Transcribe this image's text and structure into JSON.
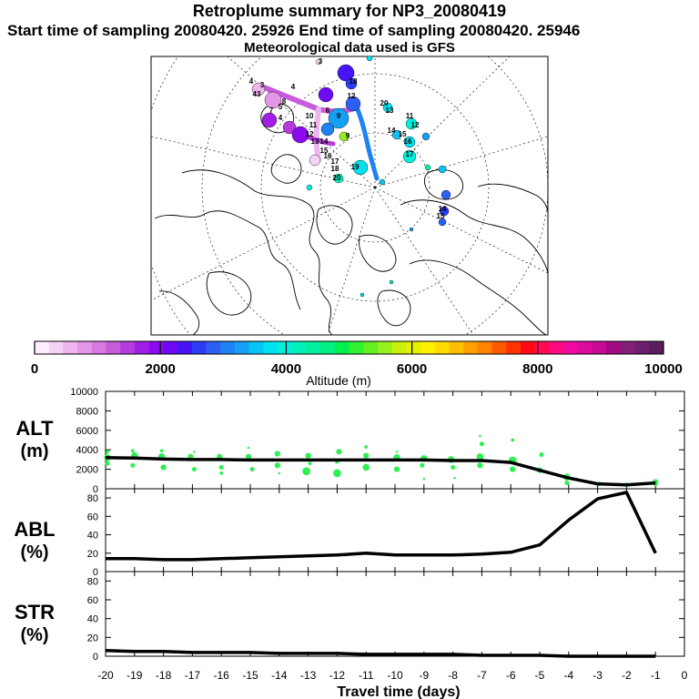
{
  "header": {
    "title": "Retroplume summary for NP3_20080419",
    "sampling_line": "Start time of sampling 20080420. 25926     End time of sampling 20080420. 25946",
    "met_line": "Meteorological data used is GFS"
  },
  "colorbar": {
    "label": "Altitude (m)",
    "ticks": [
      "0",
      "2000",
      "4000",
      "6000",
      "8000",
      "10000"
    ],
    "range": [
      0,
      10000
    ],
    "colors": [
      "#ffeeff",
      "#f6d2f6",
      "#eeb4ee",
      "#e696e6",
      "#d878e0",
      "#c85adc",
      "#b43cdc",
      "#a01ee6",
      "#8c0af0",
      "#6e0af5",
      "#4614f5",
      "#2d3cf5",
      "#2d5ff5",
      "#1e82f5",
      "#14a0f5",
      "#0ac3f5",
      "#00e1f0",
      "#00f0dc",
      "#00f0be",
      "#00f0a0",
      "#00f082",
      "#00f050",
      "#32f032",
      "#64f01e",
      "#96f01e",
      "#c8f00a",
      "#e6f000",
      "#fff000",
      "#ffdc00",
      "#ffbe00",
      "#ffa000",
      "#ff8200",
      "#ff5a00",
      "#ff3200",
      "#ff0a14",
      "#ff0a50",
      "#ff0a82",
      "#f00aa0",
      "#dc0aa0",
      "#c80a96",
      "#a00a82",
      "#821e78",
      "#6e1e6e",
      "#5a1e5a"
    ]
  },
  "map": {
    "labels": [
      {
        "t": "4",
        "x": 276,
        "y": 92
      },
      {
        "t": "3",
        "x": 288,
        "y": 96
      },
      {
        "t": "43",
        "x": 282,
        "y": 106
      },
      {
        "t": "4",
        "x": 322,
        "y": 98
      },
      {
        "t": "8",
        "x": 312,
        "y": 114
      },
      {
        "t": "5",
        "x": 308,
        "y": 120
      },
      {
        "t": "7",
        "x": 298,
        "y": 124
      },
      {
        "t": "4",
        "x": 308,
        "y": 132
      },
      {
        "t": "10",
        "x": 340,
        "y": 130
      },
      {
        "t": "9",
        "x": 372,
        "y": 130
      },
      {
        "t": "11",
        "x": 344,
        "y": 140
      },
      {
        "t": "12",
        "x": 340,
        "y": 150
      },
      {
        "t": "13",
        "x": 346,
        "y": 158
      },
      {
        "t": "14",
        "x": 356,
        "y": 158
      },
      {
        "t": "15",
        "x": 356,
        "y": 168
      },
      {
        "t": "16",
        "x": 360,
        "y": 174
      },
      {
        "t": "17",
        "x": 368,
        "y": 180
      },
      {
        "t": "18",
        "x": 368,
        "y": 188
      },
      {
        "t": "19",
        "x": 390,
        "y": 186
      },
      {
        "t": "20",
        "x": 370,
        "y": 198
      },
      {
        "t": "18",
        "x": 388,
        "y": 92
      },
      {
        "t": "12",
        "x": 386,
        "y": 108
      },
      {
        "t": "3",
        "x": 352,
        "y": 70
      },
      {
        "t": "20",
        "x": 422,
        "y": 116
      },
      {
        "t": "13",
        "x": 428,
        "y": 124
      },
      {
        "t": "11",
        "x": 450,
        "y": 130
      },
      {
        "t": "12",
        "x": 456,
        "y": 140
      },
      {
        "t": "14",
        "x": 430,
        "y": 146
      },
      {
        "t": "15",
        "x": 442,
        "y": 150
      },
      {
        "t": "16",
        "x": 448,
        "y": 158
      },
      {
        "t": "17",
        "x": 450,
        "y": 172
      },
      {
        "t": "14",
        "x": 486,
        "y": 232
      },
      {
        "t": "15",
        "x": 484,
        "y": 240
      },
      {
        "t": "9",
        "x": 382,
        "y": 152
      },
      {
        "t": "6",
        "x": 360,
        "y": 124
      }
    ]
  },
  "chart_data": [
    {
      "type": "scatter",
      "title": "ALT (m)",
      "panel_label": "ALT",
      "panel_unit": "(m)",
      "ylim": [
        0,
        10000
      ],
      "yticks": [
        "0",
        "2000",
        "4000",
        "6000",
        "8000",
        "10000"
      ],
      "x": [
        -20,
        -19,
        -18,
        -17,
        -16,
        -15,
        -14,
        -13,
        -12,
        -11,
        -10,
        -9,
        -8,
        -7,
        -6,
        -5,
        -4,
        -3,
        -2,
        -1
      ],
      "line_values": [
        3200,
        3150,
        3050,
        3000,
        3000,
        2950,
        2950,
        2950,
        2950,
        2950,
        2950,
        2950,
        2900,
        2900,
        2700,
        1900,
        1100,
        500,
        400,
        600
      ],
      "points": [
        {
          "x": -20,
          "y": 3200,
          "s": 6
        },
        {
          "x": -20,
          "y": 2600,
          "s": 4
        },
        {
          "x": -20,
          "y": 3800,
          "s": 3
        },
        {
          "x": -19,
          "y": 3400,
          "s": 6
        },
        {
          "x": -19,
          "y": 2400,
          "s": 4
        },
        {
          "x": -19,
          "y": 3900,
          "s": 3
        },
        {
          "x": -18,
          "y": 3300,
          "s": 6
        },
        {
          "x": -18,
          "y": 2200,
          "s": 5
        },
        {
          "x": -18,
          "y": 3900,
          "s": 3
        },
        {
          "x": -17,
          "y": 3300,
          "s": 5
        },
        {
          "x": -17,
          "y": 2000,
          "s": 4
        },
        {
          "x": -17,
          "y": 3800,
          "s": 2
        },
        {
          "x": -16,
          "y": 3300,
          "s": 5
        },
        {
          "x": -16,
          "y": 2200,
          "s": 4
        },
        {
          "x": -16,
          "y": 1600,
          "s": 3
        },
        {
          "x": -15,
          "y": 3300,
          "s": 5
        },
        {
          "x": -15,
          "y": 2000,
          "s": 4
        },
        {
          "x": -15,
          "y": 4200,
          "s": 2
        },
        {
          "x": -14,
          "y": 3600,
          "s": 5
        },
        {
          "x": -14,
          "y": 2400,
          "s": 5
        },
        {
          "x": -14,
          "y": 1600,
          "s": 2
        },
        {
          "x": -13,
          "y": 3400,
          "s": 5
        },
        {
          "x": -13,
          "y": 1800,
          "s": 7
        },
        {
          "x": -13,
          "y": 2600,
          "s": 3
        },
        {
          "x": -12,
          "y": 3800,
          "s": 5
        },
        {
          "x": -12,
          "y": 1600,
          "s": 7
        },
        {
          "x": -12,
          "y": 2800,
          "s": 4
        },
        {
          "x": -11,
          "y": 3400,
          "s": 5
        },
        {
          "x": -11,
          "y": 2200,
          "s": 6
        },
        {
          "x": -11,
          "y": 4300,
          "s": 3
        },
        {
          "x": -10,
          "y": 3200,
          "s": 6
        },
        {
          "x": -10,
          "y": 2000,
          "s": 5
        },
        {
          "x": -10,
          "y": 3800,
          "s": 2
        },
        {
          "x": -9,
          "y": 3100,
          "s": 6
        },
        {
          "x": -9,
          "y": 2400,
          "s": 4
        },
        {
          "x": -9,
          "y": 1000,
          "s": 2
        },
        {
          "x": -8,
          "y": 3000,
          "s": 6
        },
        {
          "x": -8,
          "y": 2200,
          "s": 4
        },
        {
          "x": -8,
          "y": 1100,
          "s": 2
        },
        {
          "x": -7,
          "y": 3300,
          "s": 6
        },
        {
          "x": -7,
          "y": 4600,
          "s": 4
        },
        {
          "x": -7,
          "y": 2400,
          "s": 5
        },
        {
          "x": -7,
          "y": 5400,
          "s": 2
        },
        {
          "x": -6,
          "y": 2900,
          "s": 7
        },
        {
          "x": -6,
          "y": 2000,
          "s": 5
        },
        {
          "x": -6,
          "y": 5000,
          "s": 3
        },
        {
          "x": -5,
          "y": 3500,
          "s": 4
        },
        {
          "x": -5,
          "y": 1900,
          "s": 5
        },
        {
          "x": -4,
          "y": 1200,
          "s": 6
        },
        {
          "x": -4,
          "y": 600,
          "s": 4
        },
        {
          "x": -3,
          "y": 500,
          "s": 4
        },
        {
          "x": -2,
          "y": 400,
          "s": 4
        },
        {
          "x": -1,
          "y": 700,
          "s": 5
        },
        {
          "x": -1,
          "y": 400,
          "s": 3
        }
      ]
    },
    {
      "type": "line",
      "title": "ABL (%)",
      "panel_label": "ABL",
      "panel_unit": "(%)",
      "ylim": [
        0,
        90
      ],
      "yticks": [
        "0",
        "20",
        "40",
        "60",
        "80"
      ],
      "x": [
        -20,
        -19,
        -18,
        -17,
        -16,
        -15,
        -14,
        -13,
        -12,
        -11,
        -10,
        -9,
        -8,
        -7,
        -6,
        -5,
        -4,
        -3,
        -2,
        -1
      ],
      "values": [
        14,
        14,
        13,
        13,
        14,
        15,
        16,
        17,
        18,
        20,
        18,
        18,
        18,
        19,
        21,
        29,
        56,
        79,
        86,
        20
      ]
    },
    {
      "type": "line",
      "title": "STR (%)",
      "panel_label": "STR",
      "panel_unit": "(%)",
      "ylim": [
        0,
        90
      ],
      "yticks": [
        "0",
        "20",
        "40",
        "60",
        "80"
      ],
      "x": [
        -20,
        -19,
        -18,
        -17,
        -16,
        -15,
        -14,
        -13,
        -12,
        -11,
        -10,
        -9,
        -8,
        -7,
        -6,
        -5,
        -4,
        -3,
        -2,
        -1
      ],
      "values": [
        6,
        5,
        5,
        4,
        4,
        4,
        3,
        3,
        3,
        2,
        2,
        2,
        2,
        1,
        1,
        1,
        0,
        0,
        0,
        0
      ]
    }
  ],
  "xaxis": {
    "label": "Travel time (days)",
    "ticks": [
      "-20",
      "-19",
      "-18",
      "-17",
      "-16",
      "-15",
      "-14",
      "-13",
      "-12",
      "-11",
      "-10",
      "-9",
      "-8",
      "-7",
      "-6",
      "-5",
      "-4",
      "-3",
      "-2",
      "-1",
      "0"
    ],
    "range": [
      -20,
      0
    ]
  }
}
